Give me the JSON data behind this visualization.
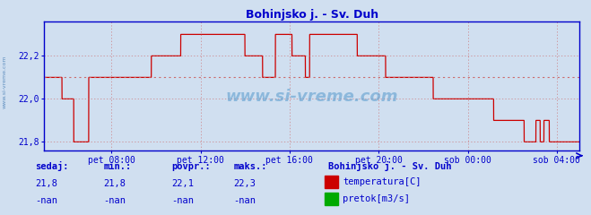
{
  "title": "Bohinjsko j. - Sv. Duh",
  "title_color": "#0000cc",
  "bg_color": "#d0dff0",
  "plot_bg_color": "#d0dff0",
  "line_color": "#cc0000",
  "axis_color": "#0000cc",
  "grid_color": "#cc6666",
  "tick_color": "#0000cc",
  "mean_value": 22.1,
  "ylim": [
    21.76,
    22.36
  ],
  "yticks": [
    21.8,
    22.0,
    22.2
  ],
  "ytick_labels": [
    "21,8",
    "22,0",
    "22,2"
  ],
  "xtick_labels": [
    "pet 08:00",
    "pet 12:00",
    "pet 16:00",
    "pet 20:00",
    "sob 00:00",
    "sob 04:00"
  ],
  "xtick_positions": [
    0.125,
    0.292,
    0.458,
    0.625,
    0.792,
    0.958
  ],
  "footer_labels": [
    "sedaj:",
    "min.:",
    "povpr.:",
    "maks.:"
  ],
  "footer_values_temp": [
    "21,8",
    "21,8",
    "22,1",
    "22,3"
  ],
  "footer_values_pretok": [
    "-nan",
    "-nan",
    "-nan",
    "-nan"
  ],
  "legend_title": "Bohinjsko j. - Sv. Duh",
  "legend_items": [
    "temperatura[C]",
    "pretok[m3/s]"
  ],
  "legend_colors": [
    "#cc0000",
    "#00aa00"
  ],
  "watermark": "www.si-vreme.com",
  "watermark_color": "#5599cc",
  "sidebar_text": "www.si-vreme.com",
  "sidebar_color": "#5588bb",
  "footer_label_color": "#0000cc",
  "footer_value_color": "#0000cc"
}
